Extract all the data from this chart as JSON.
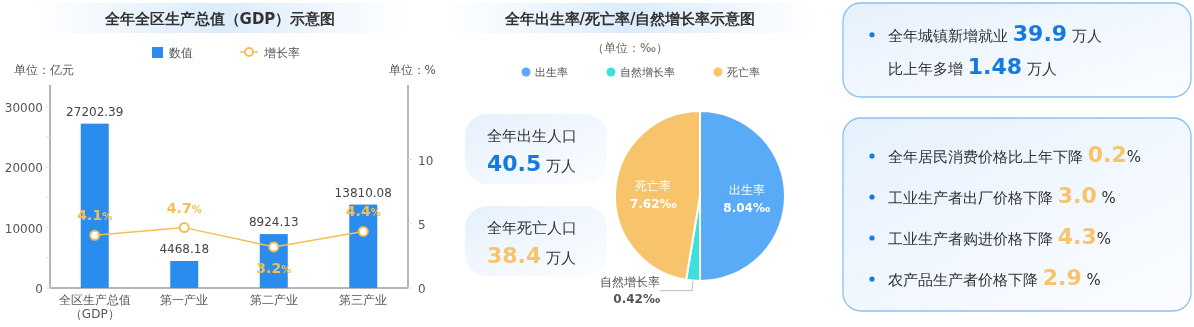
{
  "chart_data": [
    {
      "type": "bar",
      "title": "全年全区生产总值（GDP）示意图",
      "ylabel": "单位：亿元",
      "y2label": "单位：%",
      "categories": [
        "全区生产总值（GDP）",
        "第一产业",
        "第二产业",
        "第三产业"
      ],
      "series": [
        {
          "name": "数值",
          "type": "bar",
          "color": "#2a8ded",
          "values": [
            27202.39,
            4468.18,
            8924.13,
            13810.08
          ],
          "value_labels": [
            "27202.39",
            "4468.18",
            "8924.13",
            "13810.08"
          ]
        },
        {
          "name": "增长率",
          "type": "line",
          "axis": "y2",
          "color": "#f7bd55",
          "values": [
            4.1,
            4.7,
            3.2,
            4.4
          ],
          "value_labels": [
            "4.1%",
            "4.7%",
            "3.2%",
            "4.4%"
          ]
        }
      ],
      "ylim": [
        0,
        33600
      ],
      "yticks": [
        0,
        {
          "value": 5000,
          "label": null
        },
        10000,
        {
          "value": 15000,
          "label": null
        },
        20000,
        {
          "value": 25000,
          "label": null
        },
        30000
      ],
      "y2lim": [
        0,
        15.8
      ],
      "y2ticks": [
        0,
        5,
        10
      ],
      "legend": "top",
      "marker": "circle"
    },
    {
      "type": "pie",
      "title": "全年出生率/死亡率/自然增长率示意图",
      "subtitle": "（单位：‰）",
      "categories": [
        "出生率",
        "自然增长率",
        "死亡率"
      ],
      "values": [
        8.04,
        0.42,
        7.62
      ],
      "colors": [
        "#5aabf7",
        "#3de0db",
        "#f8c46b"
      ],
      "value_labels": [
        "8.04‰",
        "0.42‰",
        "7.62‰"
      ],
      "legend": "top"
    },
    {
      "type": "other",
      "annotations": [
        "全年出生人口\n40.5 万人",
        "全年死亡人口\n38.4 万人"
      ],
      "colors": [
        "#1479e0",
        "#f8c46b"
      ]
    },
    {
      "type": "other",
      "annotations": [
        "全年城镇新增就业 39.9 万人",
        "比上年多增 1.48 万人"
      ],
      "colors": [
        "#1479e0",
        "#1479e0"
      ]
    },
    {
      "type": "other",
      "annotations": [
        "全年居民消费价格比上年下降 0.2%",
        "工业生产者出厂价格下降 3.0 %",
        "工业生产者购进价格下降 4.3%",
        "农产品生产者价格下降 2.9 %"
      ],
      "colors": [
        "#f8c46b",
        "#f8c46b",
        "#f8c46b",
        "#f8c46b"
      ]
    }
  ]
}
